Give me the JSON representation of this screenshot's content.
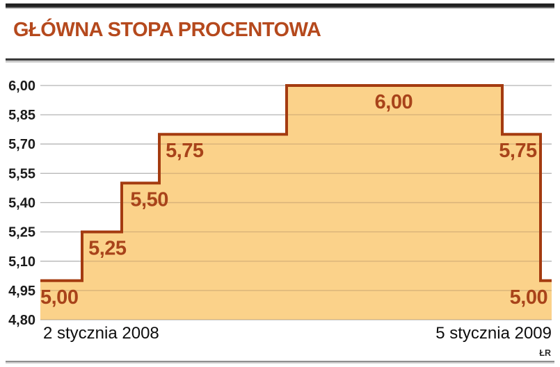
{
  "chart_data": {
    "type": "area",
    "subtype": "step-area",
    "title": "GŁÓWNA STOPA PROCENTOWA",
    "ylabel": "",
    "xlabel": "",
    "ylim": [
      4.8,
      6.0
    ],
    "grid": true,
    "legend": "none",
    "credit": "ŁR",
    "x_labels": {
      "left": "2 stycznia 2008",
      "right": "5 stycznia 2009"
    },
    "y_ticks": [
      {
        "label": "6,00",
        "value": 6.0
      },
      {
        "label": "5,85",
        "value": 5.85
      },
      {
        "label": "5,70",
        "value": 5.7
      },
      {
        "label": "5,55",
        "value": 5.55
      },
      {
        "label": "5,40",
        "value": 5.4
      },
      {
        "label": "5,25",
        "value": 5.25
      },
      {
        "label": "5,10",
        "value": 5.1
      },
      {
        "label": "4,95",
        "value": 4.95
      },
      {
        "label": "4,80",
        "value": 4.8
      }
    ],
    "series_name": "główna stopa procentowa (%)",
    "segments": [
      {
        "value": 5.0,
        "from": 0.0,
        "to": 0.0816
      },
      {
        "value": 5.25,
        "from": 0.0816,
        "to": 0.1592
      },
      {
        "value": 5.5,
        "from": 0.1592,
        "to": 0.2327
      },
      {
        "value": 5.75,
        "from": 0.2327,
        "to": 0.4816
      },
      {
        "value": 6.0,
        "from": 0.4816,
        "to": 0.9034
      },
      {
        "value": 5.75,
        "from": 0.9034,
        "to": 0.9782
      },
      {
        "value": 5.0,
        "from": 0.9782,
        "to": 1.0
      }
    ],
    "annotations": [
      {
        "text": "5,00",
        "x": 0.0,
        "value": 5.0,
        "anchor": "start"
      },
      {
        "text": "5,25",
        "x": 0.094,
        "value": 5.25,
        "anchor": "start"
      },
      {
        "text": "5,50",
        "x": 0.176,
        "value": 5.5,
        "anchor": "start"
      },
      {
        "text": "5,75",
        "x": 0.245,
        "value": 5.75,
        "anchor": "start"
      },
      {
        "text": "6,00",
        "x": 0.691,
        "value": 6.0,
        "anchor": "middle"
      },
      {
        "text": "5,75",
        "x": 0.971,
        "value": 5.75,
        "anchor": "end"
      },
      {
        "text": "5,00",
        "x": 0.992,
        "value": 5.0,
        "anchor": "end"
      }
    ],
    "colors": {
      "line": "#a43b10",
      "fill": "#fbd28a",
      "grid": "#b4b4b4",
      "grid_on_fill": "#d8b279",
      "annotation": "#a8431a",
      "title": "#b5491d",
      "tick_text": "#1b1b1b"
    }
  }
}
